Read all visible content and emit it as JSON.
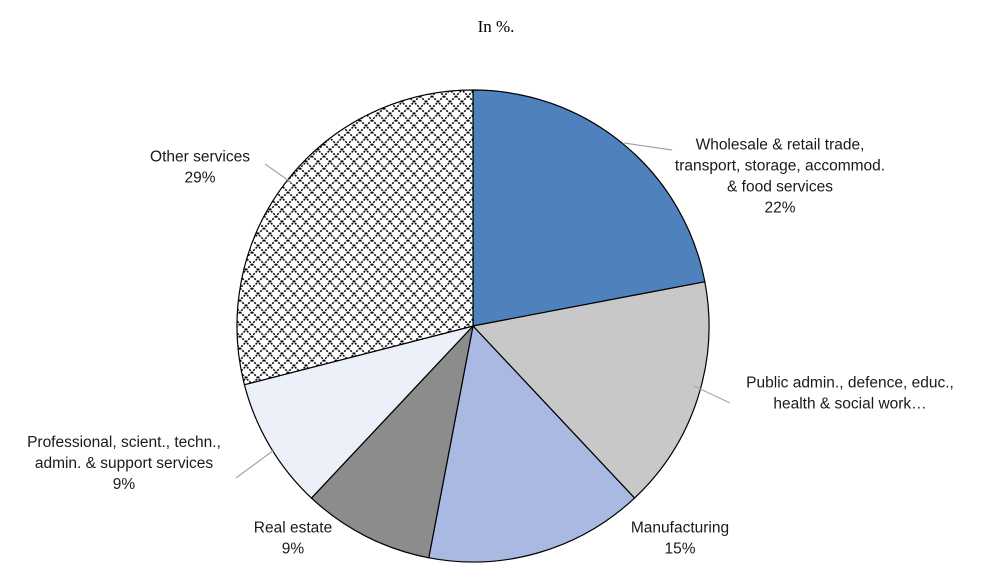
{
  "chart_data": {
    "type": "pie",
    "title": "",
    "subtitle": "In %.",
    "colors": {
      "outline": "#000000",
      "leader": "#a6a6a6",
      "slices": [
        "#4f81bd",
        "#c8c8c8",
        "#a9b9e2",
        "#8c8c8c",
        "#ecf0f8",
        "pattern-crosshatch"
      ]
    },
    "slices": [
      {
        "label_lines": [
          "Wholesale & retail trade,",
          "transport, storage, accommod.",
          "& food services"
        ],
        "value": 22,
        "value_label": "22%"
      },
      {
        "label_lines": [
          "Public admin., defence, educ.,",
          "health & social work…"
        ],
        "value": 16,
        "value_label": ""
      },
      {
        "label_lines": [
          "Manufacturing"
        ],
        "value": 15,
        "value_label": "15%"
      },
      {
        "label_lines": [
          "Real estate"
        ],
        "value": 9,
        "value_label": "9%"
      },
      {
        "label_lines": [
          "Professional, scient., techn.,",
          "admin. & support services"
        ],
        "value": 9,
        "value_label": "9%"
      },
      {
        "label_lines": [
          "Other services"
        ],
        "value": 29,
        "value_label": "29%"
      }
    ]
  }
}
